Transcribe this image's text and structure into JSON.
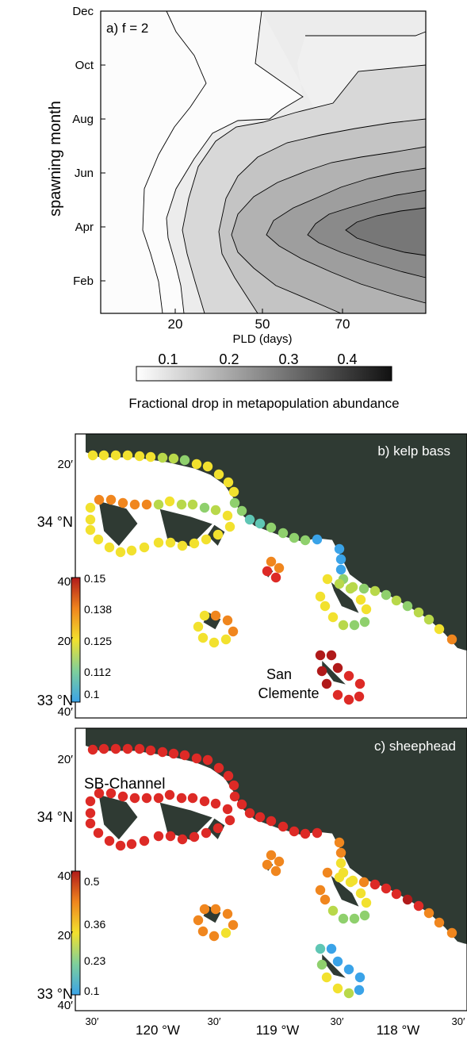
{
  "panel_a": {
    "label": "a) f = 2",
    "ylabel": "spawning month",
    "xlabel": "PLD (days)",
    "yticks": [
      "Dec",
      "Oct",
      "Aug",
      "Jun",
      "Apr",
      "Feb"
    ],
    "xticks": [
      "20",
      "50",
      "70"
    ],
    "colorbar": {
      "ticks": [
        "0.1",
        "0.2",
        "0.3",
        "0.4"
      ],
      "title": "Fractional drop in metapopulation abundance",
      "range": [
        0.0,
        0.48
      ]
    }
  },
  "panel_b": {
    "label": "b) kelp bass",
    "colorbar_ticks": [
      "0.15",
      "0.138",
      "0.125",
      "0.112",
      "0.1"
    ],
    "colorbar_range": [
      0.1,
      0.15
    ],
    "island_label_1": "San",
    "island_label_2": "Clemente"
  },
  "panel_c": {
    "label": "c) sheephead",
    "colorbar_ticks": [
      "0.5",
      "0.36",
      "0.23",
      "0.1"
    ],
    "colorbar_range": [
      0.1,
      0.5
    ],
    "channel_label": "SB-Channel"
  },
  "map_axes": {
    "lat_ticks": [
      "20′",
      "34 °N",
      "40′",
      "20′",
      "33 °N",
      "40′"
    ],
    "lon_ticks": [
      "30′",
      "120 °W",
      "30′",
      "119 °W",
      "30′",
      "118 °W",
      "30′"
    ]
  },
  "colors": {
    "land": "#2f3a33",
    "frame": "#000000"
  }
}
